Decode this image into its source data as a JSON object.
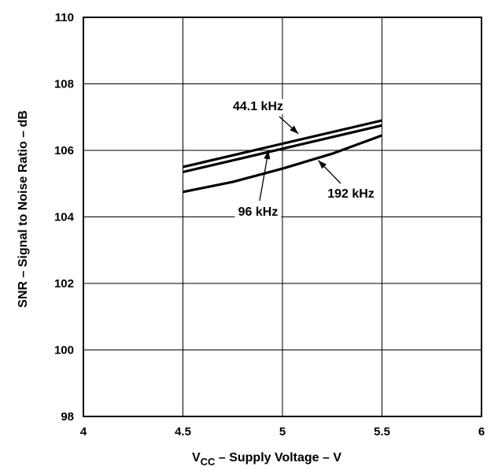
{
  "chart_data": {
    "type": "line",
    "title": "",
    "xlabel": {
      "main": "V",
      "sub": "CC",
      "rest": " – Supply Voltage – V"
    },
    "ylabel": "SNR – Signal to Noise Ratio – dB",
    "xlim": [
      4,
      6
    ],
    "ylim": [
      98,
      110
    ],
    "xticks": [
      "4",
      "4.5",
      "5",
      "5.5",
      "6"
    ],
    "yticks": [
      "98",
      "100",
      "102",
      "104",
      "106",
      "108",
      "110"
    ],
    "grid": true,
    "series": [
      {
        "name": "44.1 kHz",
        "x": [
          4.5,
          5.0,
          5.5
        ],
        "y": [
          105.5,
          106.2,
          106.9
        ]
      },
      {
        "name": "96 kHz",
        "x": [
          4.5,
          5.0,
          5.5
        ],
        "y": [
          105.35,
          106.05,
          106.75
        ]
      },
      {
        "name": "192 kHz",
        "x": [
          4.5,
          4.75,
          5.0,
          5.25,
          5.5
        ],
        "y": [
          104.75,
          105.05,
          105.45,
          105.9,
          106.45
        ]
      }
    ],
    "annotations": [
      {
        "series": "44.1 kHz",
        "text": "44.1 kHz",
        "point": [
          5.08,
          106.5
        ]
      },
      {
        "series": "96 kHz",
        "text": "96 kHz",
        "point": [
          4.93,
          106.0
        ]
      },
      {
        "series": "192 kHz",
        "text": "192 kHz",
        "point": [
          5.18,
          105.7
        ]
      }
    ]
  }
}
